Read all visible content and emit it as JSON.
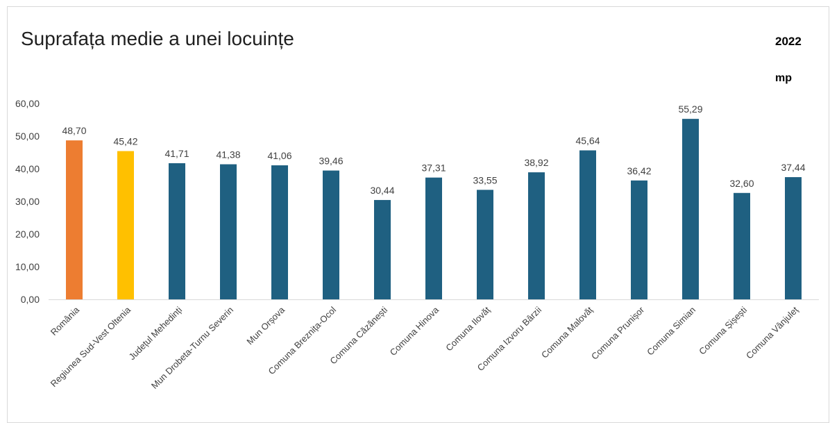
{
  "chart_data": {
    "type": "bar",
    "title": "Suprafața medie a unei locuințe",
    "subtitle": "2022",
    "unit_label": "mp",
    "ylim": [
      0,
      60
    ],
    "y_ticks": [
      "0,00",
      "10,00",
      "20,00",
      "30,00",
      "40,00",
      "50,00",
      "60,00"
    ],
    "grid": false,
    "categories": [
      "România",
      "Regiunea Sud-Vest Oltenia",
      "Județul Mehedinți",
      "Mun Drobeta-Turnu Severin",
      "Mun Orșova",
      "Comuna Breznița-Ocol",
      "Comuna Căzănești",
      "Comuna Hinova",
      "Comuna Ilovăț",
      "Comuna Izvoru Bârzii",
      "Comuna Malovăț",
      "Comuna Prunișor",
      "Comuna Simian",
      "Comuna Șișești",
      "Comuna Vânjuleț"
    ],
    "values": [
      48.7,
      45.42,
      41.71,
      41.38,
      41.06,
      39.46,
      30.44,
      37.31,
      33.55,
      38.92,
      45.64,
      36.42,
      55.29,
      32.6,
      37.44
    ],
    "value_labels": [
      "48,70",
      "45,42",
      "41,71",
      "41,38",
      "41,06",
      "39,46",
      "30,44",
      "37,31",
      "33,55",
      "38,92",
      "45,64",
      "36,42",
      "55,29",
      "32,60",
      "37,44"
    ],
    "colors": [
      "#ed7d31",
      "#ffc000",
      "#1f6081",
      "#1f6081",
      "#1f6081",
      "#1f6081",
      "#1f6081",
      "#1f6081",
      "#1f6081",
      "#1f6081",
      "#1f6081",
      "#1f6081",
      "#1f6081",
      "#1f6081",
      "#1f6081"
    ]
  }
}
